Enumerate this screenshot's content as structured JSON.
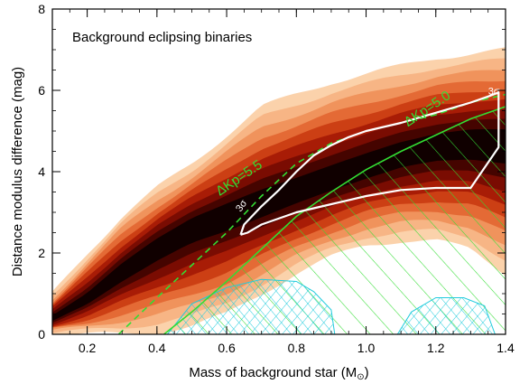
{
  "chart_data": {
    "type": "heatmap",
    "title": "",
    "annotation": "Background eclipsing binaries",
    "xlabel": "Mass of background star (M",
    "xlabel_symbol": "⊙",
    "xlabel_close": ")",
    "ylabel": "Distance modulus difference (mag)",
    "xlim": [
      0.1,
      1.4
    ],
    "ylim": [
      0,
      8
    ],
    "xticks": [
      0.2,
      0.4,
      0.6,
      0.8,
      1.0,
      1.2,
      1.4
    ],
    "xtick_labels": [
      "0.2",
      "0.4",
      "0.6",
      "0.8",
      "1.0",
      "1.2",
      "1.4"
    ],
    "yticks": [
      0,
      2,
      4,
      6,
      8
    ],
    "ytick_labels": [
      "0",
      "2",
      "4",
      "6",
      "8"
    ],
    "colors": {
      "levels": [
        "#fbd2ab",
        "#f7b585",
        "#f0935c",
        "#e46a35",
        "#cc3f14",
        "#a81c06",
        "#7a0c02",
        "#450400",
        "#100000"
      ],
      "hatch_green": "#33dd33",
      "hatch_cyan": "#22ccdd",
      "sigma_contour": "#ffffff",
      "dashed_line": "#33dd33"
    },
    "density_envelope": {
      "x": [
        0.1,
        0.15,
        0.2,
        0.3,
        0.4,
        0.5,
        0.6,
        0.7,
        0.8,
        0.9,
        1.0,
        1.1,
        1.2,
        1.3,
        1.4
      ],
      "upper": [
        1.0,
        1.5,
        2.0,
        2.9,
        3.6,
        4.2,
        4.9,
        5.6,
        5.9,
        6.2,
        6.4,
        6.6,
        6.8,
        6.9,
        7.0
      ],
      "lower": [
        0.0,
        0.0,
        0.0,
        0.0,
        0.05,
        0.2,
        0.5,
        1.0,
        1.5,
        1.9,
        2.2,
        2.3,
        2.3,
        2.1,
        1.5
      ]
    },
    "ridge": {
      "x": [
        0.1,
        0.2,
        0.3,
        0.4,
        0.5,
        0.6,
        0.7,
        0.8,
        0.9,
        1.0,
        1.1,
        1.2,
        1.3,
        1.4
      ],
      "y": [
        0.4,
        0.9,
        1.6,
        2.2,
        2.7,
        3.0,
        3.3,
        3.6,
        3.9,
        4.2,
        4.5,
        4.7,
        4.8,
        4.8
      ]
    },
    "delta_kp_lines": [
      {
        "label": "ΔKp=5.5",
        "style": "dashed",
        "x": [
          0.29,
          0.4,
          0.5,
          0.6,
          0.7,
          0.8,
          0.9,
          1.0,
          1.1,
          1.2,
          1.3,
          1.4
        ],
        "y": [
          0.0,
          0.9,
          1.7,
          2.5,
          3.4,
          4.2,
          4.7,
          5.0,
          5.2,
          5.4,
          5.7,
          5.9
        ],
        "label_x": 0.58,
        "label_y": 3.4
      },
      {
        "label": "ΔKp=5.0",
        "style": "solid",
        "x": [
          0.42,
          0.5,
          0.6,
          0.7,
          0.8,
          0.9,
          1.0,
          1.1,
          1.2,
          1.3,
          1.4
        ],
        "y": [
          0.0,
          0.55,
          1.3,
          2.1,
          2.9,
          3.5,
          4.05,
          4.5,
          4.9,
          5.3,
          5.6
        ],
        "label_x": 1.12,
        "label_y": 5.1
      }
    ],
    "sigma_contour": {
      "label_top": "3σ",
      "label_left": "3σ",
      "x": [
        0.64,
        0.65,
        0.7,
        0.75,
        0.8,
        0.85,
        0.9,
        0.95,
        1.0,
        1.1,
        1.2,
        1.3,
        1.35,
        1.38,
        1.38,
        1.3,
        1.2,
        1.1,
        1.0,
        0.9,
        0.8,
        0.7,
        0.66,
        0.64
      ],
      "y": [
        2.45,
        2.7,
        3.15,
        3.55,
        4.0,
        4.4,
        4.65,
        4.85,
        5.0,
        5.2,
        5.45,
        5.7,
        5.85,
        5.95,
        4.6,
        3.6,
        3.6,
        3.55,
        3.4,
        3.2,
        3.0,
        2.7,
        2.5,
        2.45
      ],
      "top_label_x": 1.35,
      "top_label_y": 5.9,
      "left_label_x": 0.64,
      "left_label_y": 3.0
    },
    "cyan_regions": [
      {
        "x": [
          0.43,
          0.5,
          0.6,
          0.7,
          0.8,
          0.85,
          0.9,
          0.91,
          0.43
        ],
        "y": [
          0.0,
          0.75,
          1.15,
          1.35,
          1.3,
          1.05,
          0.6,
          0.0,
          0.0
        ]
      },
      {
        "x": [
          1.09,
          1.13,
          1.2,
          1.28,
          1.34,
          1.37,
          1.09
        ],
        "y": [
          0.0,
          0.55,
          0.9,
          0.9,
          0.7,
          0.0,
          0.0
        ]
      }
    ]
  }
}
